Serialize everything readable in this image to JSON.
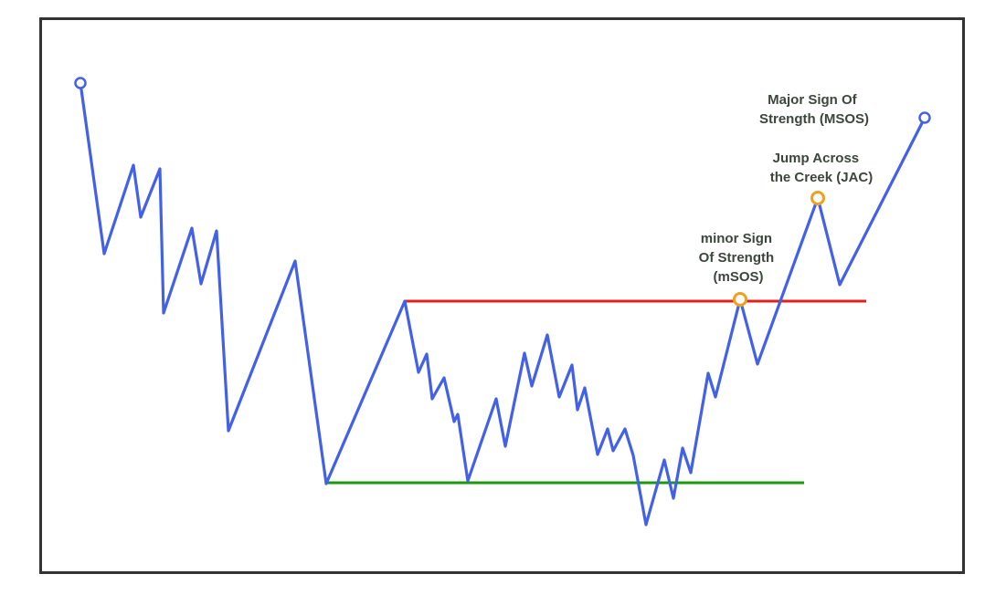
{
  "colors": {
    "background": "#ffffff",
    "frame": "#333333",
    "price_line": "#4361e6",
    "resistance": "#e0201c",
    "support": "#1a9a0a",
    "marker_orange": "#f0a020",
    "marker_blue": "#4361e6",
    "label_text": "#3c463c"
  },
  "labels": {
    "major_sos": [
      "Major Sign Of",
      "Strength (MSOS)"
    ],
    "jac": [
      "Jump Across",
      "the Creek (JAC)"
    ],
    "minor_sos": [
      "minor Sign",
      "Of Strength",
      "(mSOS)"
    ]
  },
  "markers": {
    "start": "open-circle",
    "end": "open-circle",
    "msos": "highlight-circle",
    "jac": "highlight-circle"
  }
}
